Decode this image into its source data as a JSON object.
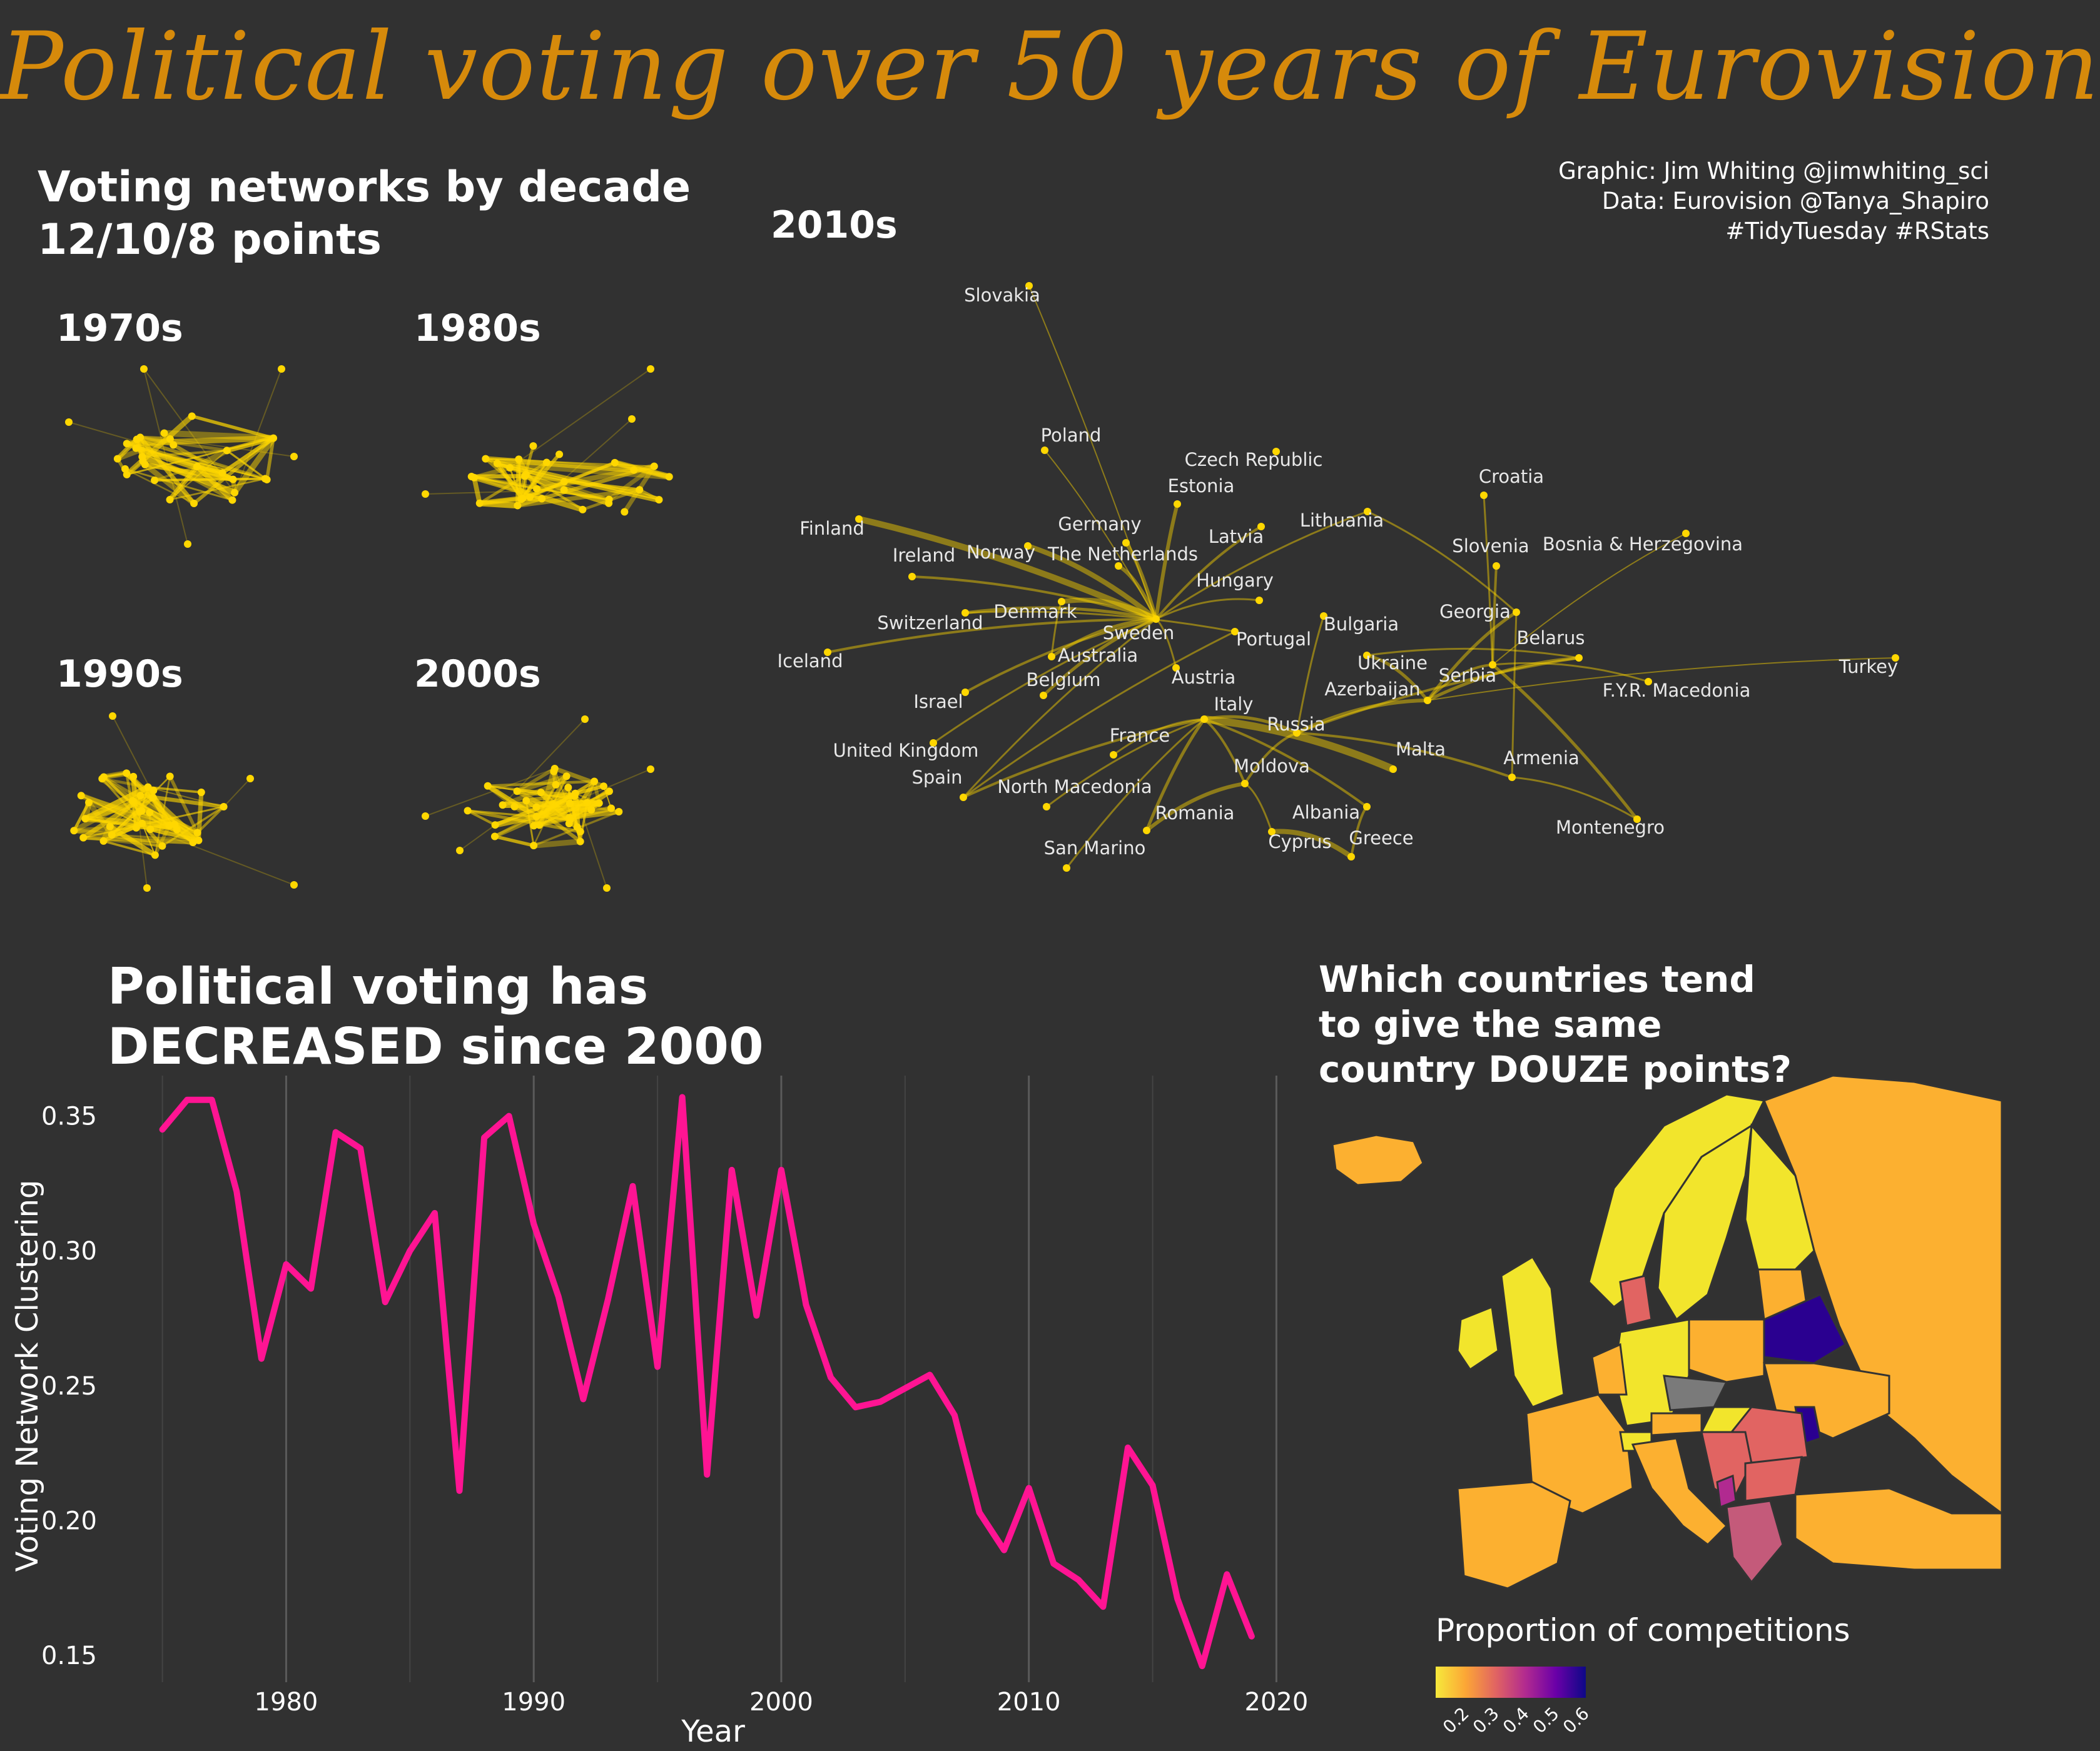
{
  "title": "Political voting over 50 years of Eurovision",
  "credits": [
    "Graphic: Jim Whiting @jimwhiting_sci",
    "Data: Eurovision @Tanya_Shapiro",
    "#TidyTuesday #RStats"
  ],
  "networks": {
    "heading_line1": "Voting networks by decade",
    "heading_line2": "12/10/8 points",
    "decades": [
      "1970s",
      "1980s",
      "1990s",
      "2000s",
      "2010s"
    ],
    "countries_2010s": [
      "Slovakia",
      "Poland",
      "Czech Republic",
      "Estonia",
      "Croatia",
      "Finland",
      "Germany",
      "Latvia",
      "Lithuania",
      "Ireland",
      "Norway",
      "The Netherlands",
      "Slovenia",
      "Bosnia & Herzegovina",
      "Hungary",
      "Denmark",
      "Georgia",
      "Switzerland",
      "Sweden",
      "Bulgaria",
      "Belarus",
      "Portugal",
      "Iceland",
      "Australia",
      "Ukraine",
      "Turkey",
      "Belgium",
      "Austria",
      "Serbia",
      "Azerbaijan",
      "Israel",
      "F.Y.R. Macedonia",
      "Italy",
      "Russia",
      "France",
      "United Kingdom",
      "Malta",
      "Armenia",
      "Spain",
      "Moldova",
      "North Macedonia",
      "Albania",
      "Romania",
      "Montenegro",
      "Cyprus",
      "Greece",
      "San Marino"
    ],
    "color": "#ffd700"
  },
  "line_heading": [
    "Political voting has",
    "DECREASED since 2000"
  ],
  "chart_data": {
    "type": "line",
    "xlabel": "Year",
    "ylabel": "Voting Network Clustering",
    "xlim": [
      1974,
      2021
    ],
    "ylim": [
      0.14,
      0.365
    ],
    "xticks": [
      1980,
      1990,
      2000,
      2010,
      2020
    ],
    "yticks": [
      0.15,
      0.2,
      0.25,
      0.3,
      0.35
    ],
    "color": "#ff1493",
    "series": [
      {
        "x": [
          1975,
          1976,
          1977,
          1978,
          1979,
          1980,
          1981,
          1982,
          1983,
          1984,
          1985,
          1986,
          1987,
          1988,
          1989,
          1990,
          1991,
          1992,
          1993,
          1994,
          1995,
          1996,
          1997,
          1998,
          1999,
          2000,
          2001,
          2002,
          2003,
          2004,
          2005,
          2006,
          2007,
          2008,
          2009,
          2010,
          2011,
          2012,
          2013,
          2014,
          2015,
          2016,
          2017,
          2018,
          2019
        ],
        "values": [
          0.345,
          0.356,
          0.356,
          0.322,
          0.26,
          0.295,
          0.286,
          0.344,
          0.338,
          0.281,
          0.3,
          0.314,
          0.211,
          0.342,
          0.35,
          0.31,
          0.283,
          0.245,
          0.282,
          0.324,
          0.257,
          0.357,
          0.217,
          0.33,
          0.276,
          0.33,
          0.28,
          0.253,
          0.242,
          0.244,
          0.249,
          0.254,
          0.239,
          0.203,
          0.189,
          0.212,
          0.184,
          0.178,
          0.168,
          0.227,
          0.213,
          0.171,
          0.146,
          0.18,
          0.157
        ]
      }
    ]
  },
  "map": {
    "heading": [
      "Which countries tend",
      "to give the same",
      "country DOUZE points?"
    ],
    "legend_title": "Proportion of competitions",
    "legend_ticks": [
      "0.2",
      "0.3",
      "0.4",
      "0.5",
      "0.6"
    ],
    "colors": {
      "low": "#f6e93b",
      "mid": "#fcb030",
      "midhigh": "#e16462",
      "high": "#6a00a8",
      "max": "#2a0090",
      "missing": "#7a7a7a"
    }
  }
}
